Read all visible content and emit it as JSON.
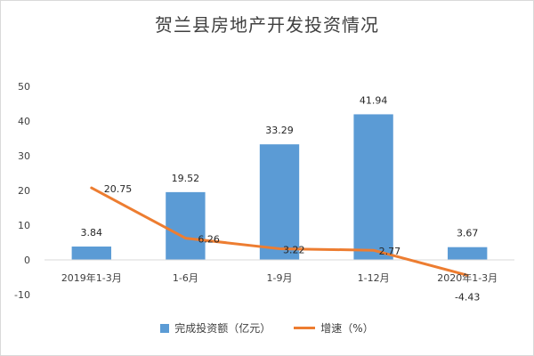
{
  "chart_data": {
    "type": "bar",
    "title": "贺兰县房地产开发投资情况",
    "categories": [
      "2019年1-3月",
      "1-6月",
      "1-9月",
      "1-12月",
      "2020年1-3月"
    ],
    "series": [
      {
        "name": "完成投资额（亿元）",
        "type": "bar",
        "values": [
          3.84,
          19.52,
          33.29,
          41.94,
          3.67
        ],
        "color": "#5b9bd5"
      },
      {
        "name": "增速（%）",
        "type": "line",
        "values": [
          20.75,
          6.26,
          3.22,
          2.77,
          -4.43
        ],
        "color": "#ed7d31"
      }
    ],
    "ylim": [
      -10,
      50
    ],
    "yticks": [
      -10,
      0,
      10,
      20,
      30,
      40,
      50
    ],
    "grid": false,
    "legend": "bottom",
    "xlabel": "",
    "ylabel": ""
  }
}
